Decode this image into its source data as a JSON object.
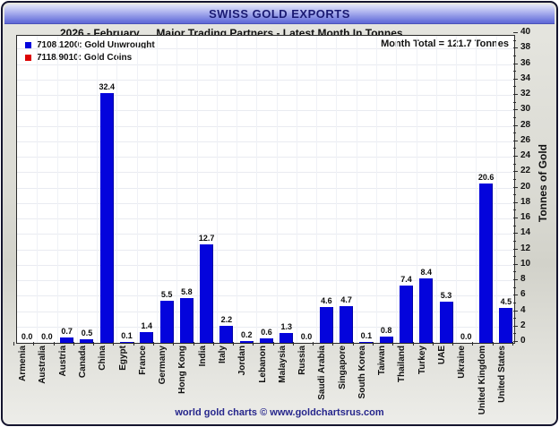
{
  "header": {
    "title": "SWISS GOLD EXPORTS"
  },
  "subheader": {
    "period": "2026 - February",
    "subtitle": "Major Trading Partners - Latest Month In Tonnes"
  },
  "legend": {
    "items": [
      {
        "label": "7108.1200: Gold Unwrought",
        "color": "#0404dc"
      },
      {
        "label": "7118.9010: Gold Coins",
        "color": "#dc0404"
      }
    ]
  },
  "annotation": {
    "month_total": "Month Total = 121.7 Tonnes"
  },
  "footer": {
    "credit": "world gold charts © www.goldchartsrus.com"
  },
  "colors": {
    "bar": "#0404dc",
    "header_accent": "#6b74dc",
    "footer_text": "#26268c"
  },
  "chart_data": {
    "type": "bar",
    "title": "Major Trading Partners - Latest Month In Tonnes",
    "categories": [
      "Armenia",
      "Australia",
      "Austria",
      "Canada",
      "China",
      "Egypt",
      "France",
      "Germany",
      "Hong Kong",
      "India",
      "Italy",
      "Jordan",
      "Lebanon",
      "Malaysia",
      "Russia",
      "Saudi Arabia",
      "Singapore",
      "South Korea",
      "Taiwan",
      "Thailand",
      "Turkey",
      "UAE",
      "Ukraine",
      "United Kingdom",
      "United States"
    ],
    "values": [
      0.0,
      0.0,
      0.7,
      0.5,
      32.4,
      0.1,
      1.4,
      5.5,
      5.8,
      12.7,
      2.2,
      0.2,
      0.6,
      1.3,
      0.0,
      4.6,
      4.7,
      0.1,
      0.8,
      7.4,
      8.4,
      5.3,
      0.0,
      20.6,
      4.5
    ],
    "xlabel": "",
    "ylabel": "Tonnes of Gold",
    "ylim": [
      0,
      40
    ],
    "ytick_step": 2,
    "ytick_minor_step": 1,
    "grid": true,
    "legend_position": "top-left",
    "bar_color": "#0404dc"
  }
}
